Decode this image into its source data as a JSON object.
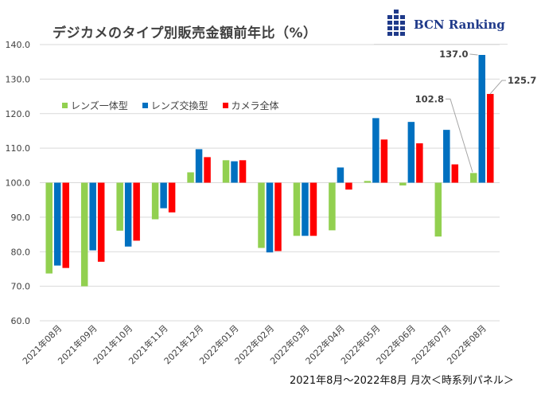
{
  "chart_data": {
    "type": "bar",
    "title": "デジカメのタイプ別販売金額前年比（%）",
    "subtitle": "2021年8月～2022年8月 月次＜時系列パネル＞",
    "xlabel": "",
    "ylabel": "",
    "ylim": [
      60,
      140
    ],
    "baseline": 100,
    "yticks": [
      "140.0",
      "130.0",
      "120.0",
      "110.0",
      "100.0",
      "90.0",
      "80.0",
      "70.0",
      "60.0"
    ],
    "ytick_values": [
      140,
      130,
      120,
      110,
      100,
      90,
      80,
      70,
      60
    ],
    "grid": true,
    "legend_position": "top-left",
    "categories": [
      "2021年08月",
      "2021年09月",
      "2021年10月",
      "2021年11月",
      "2021年12月",
      "2022年01月",
      "2022年02月",
      "2022年03月",
      "2022年04月",
      "2022年05月",
      "2022年06月",
      "2022年07月",
      "2022年08月"
    ],
    "series": [
      {
        "name": "レンズ一体型",
        "color": "#92d050",
        "values": [
          73.7,
          70.0,
          86.1,
          89.4,
          103.0,
          106.5,
          81.1,
          84.6,
          86.2,
          100.5,
          99.2,
          84.4,
          102.8
        ]
      },
      {
        "name": "レンズ交換型",
        "color": "#0070c0",
        "values": [
          76.0,
          80.4,
          81.5,
          92.6,
          109.7,
          106.2,
          79.8,
          84.6,
          104.4,
          118.7,
          117.6,
          115.3,
          137.0
        ]
      },
      {
        "name": "カメラ全体",
        "color": "#ff0000",
        "values": [
          75.3,
          77.1,
          83.2,
          91.4,
          107.4,
          106.5,
          80.2,
          84.6,
          98.0,
          112.5,
          111.4,
          105.3,
          125.7
        ]
      }
    ],
    "annotations": [
      {
        "category": "2022年08月",
        "series": "レンズ一体型",
        "text": "102.8"
      },
      {
        "category": "2022年08月",
        "series": "レンズ交換型",
        "text": "137.0"
      },
      {
        "category": "2022年08月",
        "series": "カメラ全体",
        "text": "125.7"
      }
    ]
  },
  "branding": {
    "logo_text": "BCN Ranking"
  }
}
